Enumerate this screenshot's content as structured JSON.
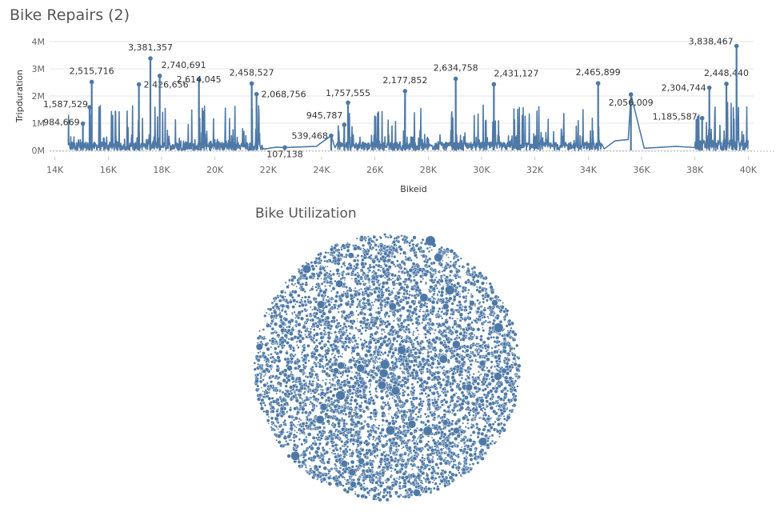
{
  "sheets": {
    "top_title": "Bike Repairs (2)",
    "bottom_title": "Bike Utilization"
  },
  "colors": {
    "accent": "#4e79a7",
    "grid": "#e6e6e6",
    "text": "#333333"
  },
  "chart_data": [
    {
      "type": "line",
      "title": "Bike Repairs (2)",
      "xlabel": "Bikeid",
      "ylabel": "Tripduration",
      "xlim": [
        13800,
        40200
      ],
      "ylim": [
        0,
        4000000
      ],
      "x_ticks": [
        14000,
        16000,
        18000,
        20000,
        22000,
        24000,
        26000,
        28000,
        30000,
        32000,
        34000,
        36000,
        38000,
        40000
      ],
      "x_tick_labels": [
        "14K",
        "16K",
        "18K",
        "20K",
        "22K",
        "24K",
        "26K",
        "28K",
        "30K",
        "32K",
        "34K",
        "36K",
        "38K",
        "40K"
      ],
      "y_ticks": [
        0,
        1000000,
        2000000,
        3000000,
        4000000
      ],
      "y_tick_labels": [
        "0M",
        "1M",
        "2M",
        "3M",
        "4M"
      ],
      "grid": true,
      "labeled_points": [
        {
          "x": 15050,
          "y": 984669,
          "label": "984,669"
        },
        {
          "x": 15300,
          "y": 1587529,
          "label": "1,587,529"
        },
        {
          "x": 15380,
          "y": 2515716,
          "label": "2,515,716"
        },
        {
          "x": 17150,
          "y": 2426656,
          "label": "2,426,656"
        },
        {
          "x": 17580,
          "y": 3381357,
          "label": "3,381,357"
        },
        {
          "x": 17930,
          "y": 2740691,
          "label": "2,740,691"
        },
        {
          "x": 19400,
          "y": 2614045,
          "label": "2,614,045"
        },
        {
          "x": 21380,
          "y": 2458527,
          "label": "2,458,527"
        },
        {
          "x": 21560,
          "y": 2068756,
          "label": "2,068,756"
        },
        {
          "x": 22620,
          "y": 107138,
          "label": "107,138"
        },
        {
          "x": 24360,
          "y": 539468,
          "label": "539,468"
        },
        {
          "x": 24850,
          "y": 945787,
          "label": "945,787"
        },
        {
          "x": 24990,
          "y": 1757555,
          "label": "1,757,555"
        },
        {
          "x": 27130,
          "y": 2177852,
          "label": "2,177,852"
        },
        {
          "x": 29030,
          "y": 2634758,
          "label": "2,634,758"
        },
        {
          "x": 30460,
          "y": 2431127,
          "label": "2,431,127"
        },
        {
          "x": 34370,
          "y": 2465899,
          "label": "2,465,899"
        },
        {
          "x": 35600,
          "y": 2056009,
          "label": "2,056,009"
        },
        {
          "x": 38270,
          "y": 1185587,
          "label": "1,185,587"
        },
        {
          "x": 38540,
          "y": 2304744,
          "label": "2,304,744"
        },
        {
          "x": 39180,
          "y": 2448440,
          "label": "2,448,440"
        },
        {
          "x": 39560,
          "y": 3838467,
          "label": "3,838,467"
        }
      ],
      "flat_segments": [
        {
          "x": 21850,
          "y": 50000
        },
        {
          "x": 22300,
          "y": 120000
        },
        {
          "x": 22620,
          "y": 107138
        },
        {
          "x": 23800,
          "y": 150000
        },
        {
          "x": 24360,
          "y": 539468
        },
        {
          "x": 24500,
          "y": 100000
        },
        {
          "x": 34600,
          "y": 60000
        },
        {
          "x": 35000,
          "y": 350000
        },
        {
          "x": 35500,
          "y": 400000
        },
        {
          "x": 36100,
          "y": 80000
        },
        {
          "x": 37300,
          "y": 150000
        },
        {
          "x": 38000,
          "y": 180000
        }
      ],
      "dense_ranges": [
        {
          "from": 14500,
          "to": 21800,
          "base": 300000,
          "spike": 1200000
        },
        {
          "from": 24600,
          "to": 34500,
          "base": 300000,
          "spike": 1200000
        },
        {
          "from": 38000,
          "to": 40000,
          "base": 400000,
          "spike": 1300000
        }
      ]
    },
    {
      "type": "scatter",
      "title": "Bike Utilization",
      "subtype": "packed-bubble",
      "bubble_count_approx": 6000,
      "large_bubbles_approx": 45
    }
  ]
}
